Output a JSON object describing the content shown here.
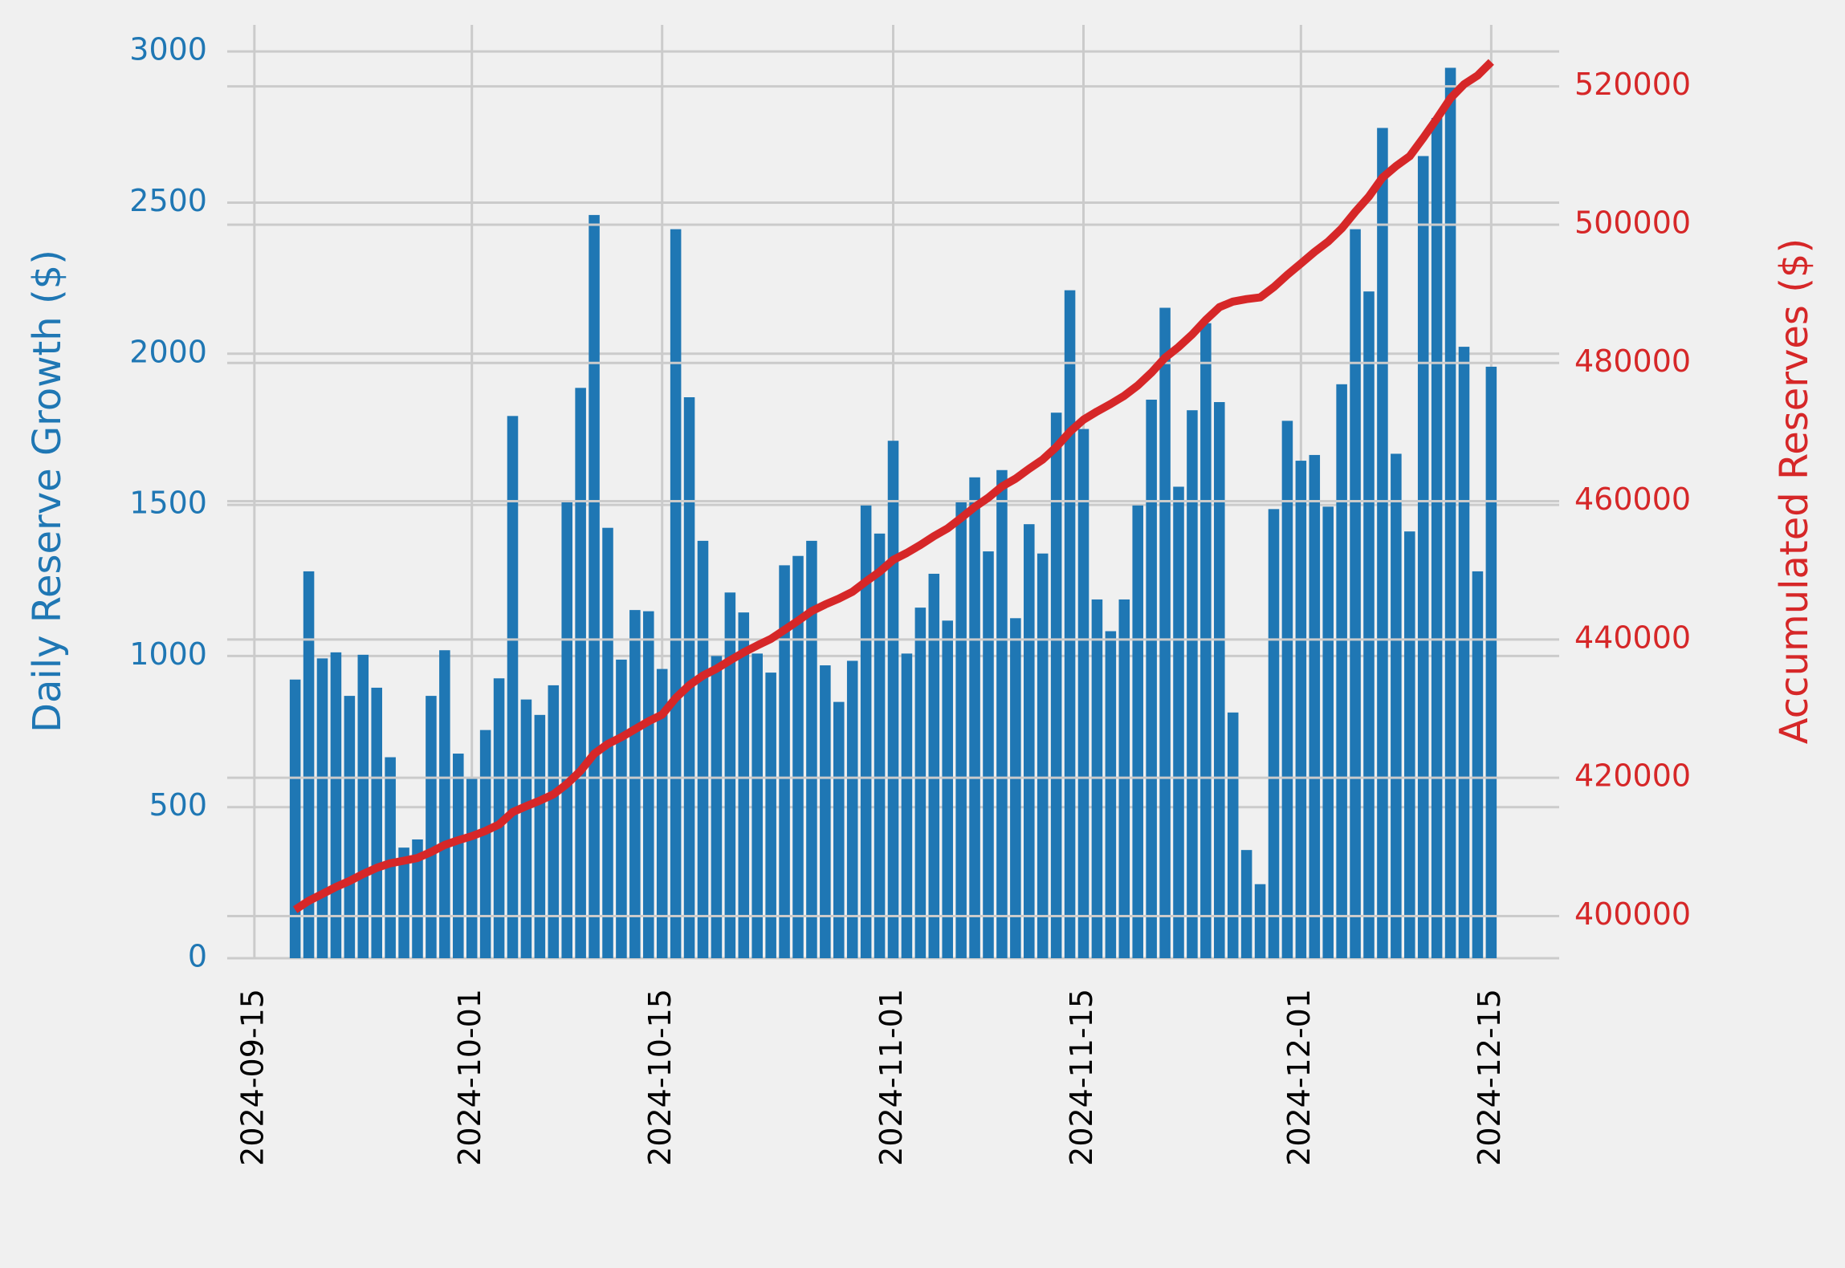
{
  "chart_data": {
    "type": "bar",
    "ylabel": "Daily Reserve Growth ($)",
    "y2label": "Accumulated Reserves ($)",
    "x": [
      "2024-09-18",
      "2024-09-19",
      "2024-09-20",
      "2024-09-21",
      "2024-09-22",
      "2024-09-23",
      "2024-09-24",
      "2024-09-25",
      "2024-09-26",
      "2024-09-27",
      "2024-09-28",
      "2024-09-29",
      "2024-09-30",
      "2024-10-01",
      "2024-10-02",
      "2024-10-03",
      "2024-10-04",
      "2024-10-05",
      "2024-10-06",
      "2024-10-07",
      "2024-10-08",
      "2024-10-09",
      "2024-10-10",
      "2024-10-11",
      "2024-10-12",
      "2024-10-13",
      "2024-10-14",
      "2024-10-15",
      "2024-10-16",
      "2024-10-17",
      "2024-10-18",
      "2024-10-19",
      "2024-10-20",
      "2024-10-21",
      "2024-10-22",
      "2024-10-23",
      "2024-10-24",
      "2024-10-25",
      "2024-10-26",
      "2024-10-27",
      "2024-10-28",
      "2024-10-29",
      "2024-10-30",
      "2024-10-31",
      "2024-11-01",
      "2024-11-02",
      "2024-11-03",
      "2024-11-04",
      "2024-11-05",
      "2024-11-06",
      "2024-11-07",
      "2024-11-08",
      "2024-11-09",
      "2024-11-10",
      "2024-11-11",
      "2024-11-12",
      "2024-11-13",
      "2024-11-14",
      "2024-11-15",
      "2024-11-16",
      "2024-11-17",
      "2024-11-18",
      "2024-11-19",
      "2024-11-20",
      "2024-11-21",
      "2024-11-22",
      "2024-11-23",
      "2024-11-24",
      "2024-11-25",
      "2024-11-26",
      "2024-11-27",
      "2024-11-28",
      "2024-11-29",
      "2024-11-30",
      "2024-12-01",
      "2024-12-02",
      "2024-12-03",
      "2024-12-04",
      "2024-12-05",
      "2024-12-06",
      "2024-12-07",
      "2024-12-08",
      "2024-12-09",
      "2024-12-10",
      "2024-12-11",
      "2024-12-12",
      "2024-12-13",
      "2024-12-14",
      "2024-12-15"
    ],
    "series": [
      {
        "type": "bar",
        "color": "#1f77b4",
        "values": [
          922,
          1280,
          992,
          1012,
          868,
          1004,
          895,
          665,
          366,
          393,
          868,
          1019,
          677,
          599,
          755,
          926,
          1794,
          856,
          805,
          903,
          1514,
          1887,
          2459,
          1424,
          988,
          1152,
          1148,
          957,
          2412,
          1856,
          1381,
          1000,
          1210,
          1144,
          1008,
          945,
          1300,
          1331,
          1381,
          969,
          848,
          984,
          1498,
          1405,
          1712,
          1008,
          1160,
          1272,
          1117,
          1510,
          1591,
          1346,
          1615,
          1125,
          1436,
          1339,
          1805,
          2210,
          1751,
          1187,
          1082,
          1187,
          1498,
          1848,
          2152,
          1560,
          1813,
          2101,
          1840,
          813,
          358,
          245,
          1486,
          1778,
          1646,
          1665,
          1494,
          1899,
          2412,
          2206,
          2747,
          1669,
          1412,
          2654,
          2780,
          2946,
          2023,
          1280,
          1957
        ]
      },
      {
        "type": "line",
        "axis": "y2",
        "color": "#d62728",
        "values": [
          400922,
          402202,
          403194,
          404206,
          405074,
          406078,
          406973,
          407638,
          408004,
          408397,
          409265,
          410284,
          410961,
          411560,
          412315,
          413241,
          415035,
          415891,
          416696,
          417599,
          419113,
          421000,
          423459,
          424883,
          425871,
          427023,
          428171,
          429128,
          431540,
          433396,
          434777,
          435777,
          436987,
          438131,
          439139,
          440084,
          441384,
          442715,
          444096,
          445065,
          445913,
          446897,
          448395,
          449800,
          451512,
          452520,
          453680,
          454952,
          456069,
          457579,
          459170,
          460516,
          462131,
          463256,
          464692,
          466031,
          467836,
          470046,
          471797,
          472984,
          474066,
          475253,
          476751,
          478599,
          480751,
          482311,
          484124,
          486225,
          488065,
          488878,
          489236,
          489481,
          490967,
          492745,
          494391,
          496056,
          497550,
          499449,
          501861,
          504067,
          506814,
          508483,
          509895,
          512549,
          515329,
          518275,
          520298,
          521578,
          523535
        ]
      }
    ],
    "xlim": [
      "2024-09-13",
      "2024-12-20"
    ],
    "xticks": [
      "2024-09-15",
      "2024-10-01",
      "2024-10-15",
      "2024-11-01",
      "2024-11-15",
      "2024-12-01",
      "2024-12-15"
    ],
    "ylim": [
      0,
      3088
    ],
    "yticks": [
      0,
      500,
      1000,
      1500,
      2000,
      2500,
      3000
    ],
    "y2lim": [
      393900,
      528900
    ],
    "y2ticks": [
      400000,
      420000,
      440000,
      460000,
      480000,
      500000,
      520000
    ],
    "grid": true
  }
}
